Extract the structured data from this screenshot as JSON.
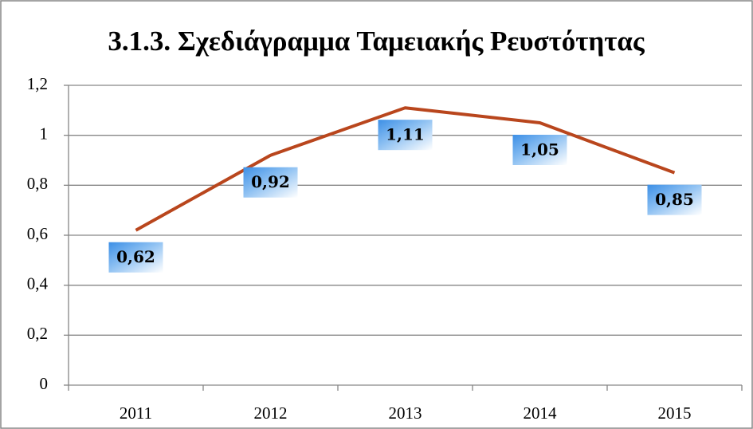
{
  "chart_data": {
    "type": "line",
    "title": "3.1.3. Σχεδιάγραμμα Ταμειακής Ρευστότητας",
    "categories": [
      "2011",
      "2012",
      "2013",
      "2014",
      "2015"
    ],
    "values": [
      0.62,
      0.92,
      1.11,
      1.05,
      0.85
    ],
    "value_labels": [
      "0,62",
      "0,92",
      "1,11",
      "1,05",
      "0,85"
    ],
    "color": "#b9461d",
    "ylim": [
      0,
      1.2
    ],
    "yticks": [
      0,
      {
        "value": 0.2,
        "label": "0,2"
      },
      {
        "value": 0.4,
        "label": "0,4"
      },
      {
        "value": 0.6,
        "label": "0,6"
      },
      {
        "value": 0.8,
        "label": "0,8"
      },
      1,
      {
        "value": 1.2,
        "label": "1,2"
      }
    ],
    "grid": true
  }
}
